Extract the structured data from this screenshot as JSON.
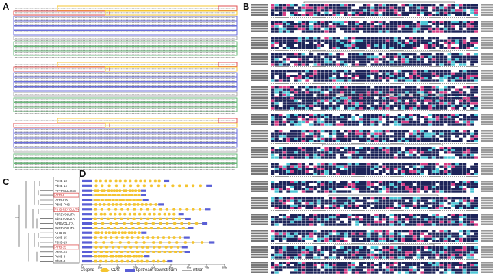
{
  "panels": {
    "a": "A",
    "b": "B",
    "c": "C",
    "d": "D"
  },
  "genes": [
    "PpHB-13",
    "PdHB-14",
    "PtPHABULOSA",
    "PtHB-8",
    "PtHB-815",
    "PdHB-PHB",
    "PtHB-REVOLUTA",
    "PdREVOLUTA",
    "SdREVOLUTA",
    "AtREVOLUTA",
    "PaREVOLUTA",
    "AtHB-15",
    "KaHB-15",
    "PdHB-15",
    "PtHB-15",
    "PdHB-13",
    "PpHB-8",
    "PdHB-8"
  ],
  "highlighted_genes": [
    "PtHB-8",
    "PtHB-REVOLUTA",
    "PtHB-15"
  ],
  "d_axis_ticks": [
    "0kb",
    "1kb",
    "2kb",
    "3kb",
    "4kb",
    "5kb",
    "6kb",
    "7kb",
    "8kb"
  ],
  "legend": {
    "title": "Legend",
    "cds": "CDS",
    "upstream": "upstream downstream",
    "intron": "intron"
  },
  "colors": {
    "yellow": "#f4c430",
    "blue": "#5a5fd6",
    "red_box": "#e05050",
    "green_box": "#58b06a",
    "navy": "#1d2459",
    "magenta": "#d63d86",
    "cyan": "#4cc6d6"
  }
}
